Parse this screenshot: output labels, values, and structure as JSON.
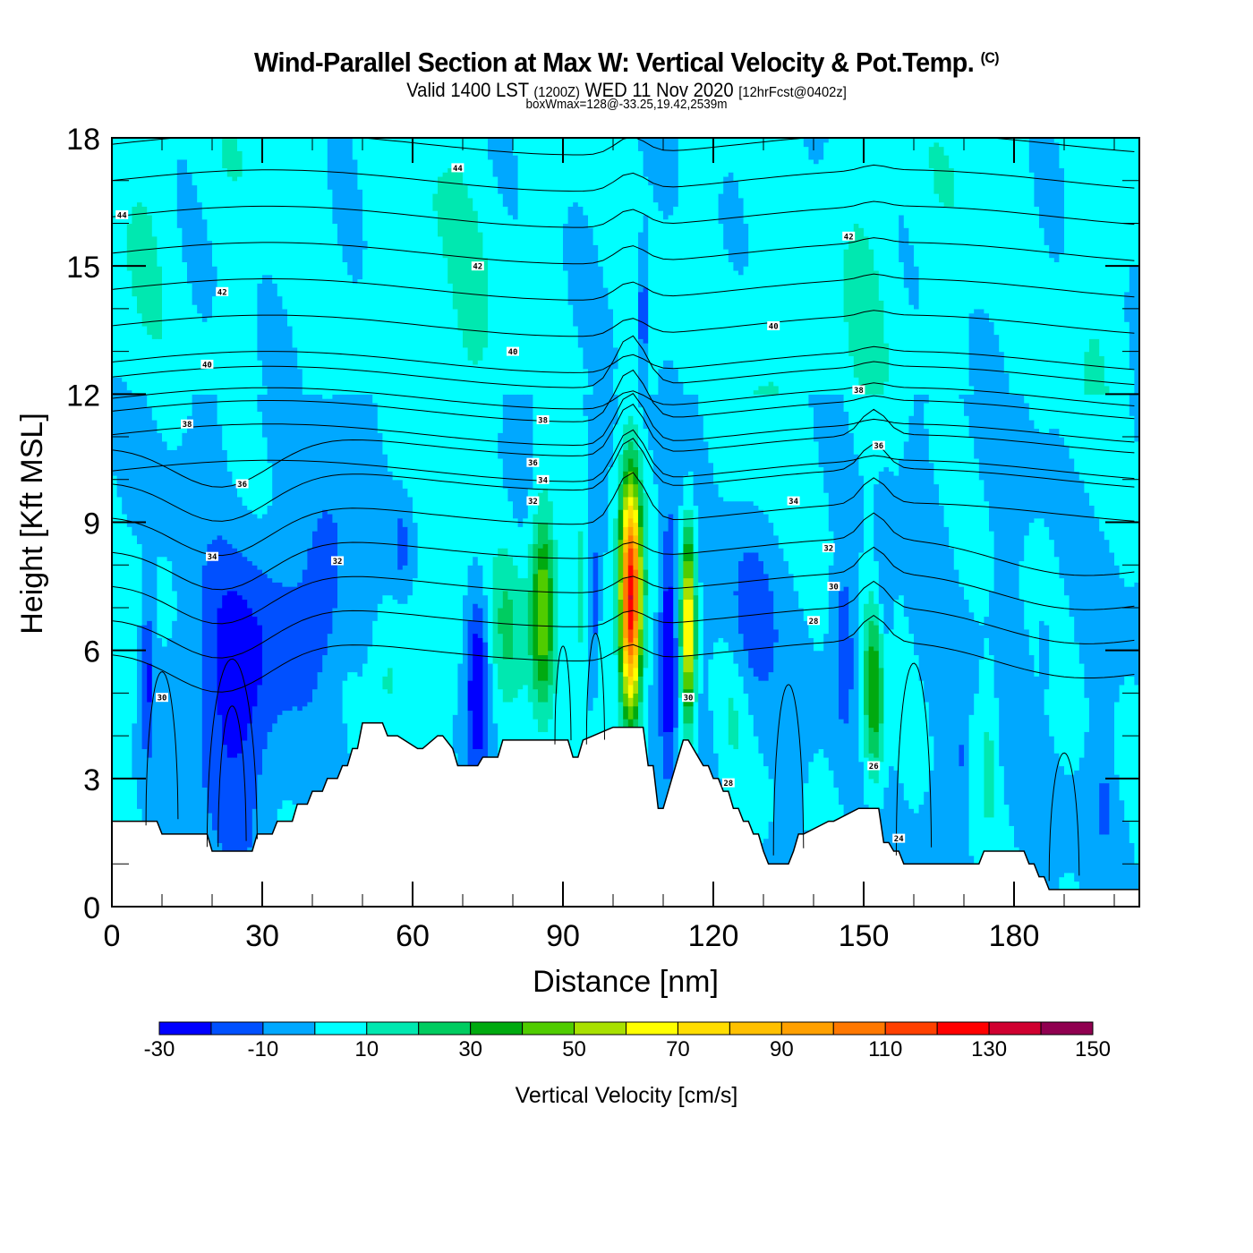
{
  "header": {
    "title": "Wind-Parallel Section at Max W: Vertical Velocity & Pot.Temp.",
    "copyright": "(C)",
    "valid_prefix": "Valid 1400 LST",
    "valid_utc": "(1200Z)",
    "valid_date": "WED 11 Nov 2020",
    "forecast": "[12hrFcst@0402z]",
    "box_info": "boxWmax=128@-33.25,19.42,2539m"
  },
  "chart_data": {
    "type": "heatmap",
    "title": "Wind-Parallel Section at Max W: Vertical Velocity & Pot.Temp.",
    "xlabel": "Distance [nm]",
    "ylabel": "Height [Kft MSL]",
    "xlim": [
      0,
      205
    ],
    "ylim": [
      0,
      18
    ],
    "x_ticks": [
      0,
      30,
      60,
      90,
      120,
      150,
      180
    ],
    "x_tick_labels": [
      "0",
      "30",
      "60",
      "90",
      "120",
      "150",
      "180"
    ],
    "x_minor_step": 10,
    "y_ticks": [
      0,
      3,
      6,
      9,
      12,
      15,
      18
    ],
    "y_tick_labels": [
      "0",
      "3",
      "6",
      "9",
      "12",
      "15",
      "18"
    ],
    "y_minor_step": 1,
    "colorbar": {
      "title": "Vertical Velocity [cm/s]",
      "levels": [
        -30,
        -20,
        -10,
        0,
        10,
        20,
        30,
        40,
        50,
        60,
        70,
        80,
        90,
        100,
        110,
        120,
        130,
        140,
        150
      ],
      "tick_labels": [
        "-30",
        "-10",
        "10",
        "30",
        "50",
        "70",
        "90",
        "110",
        "130",
        "150"
      ],
      "colors": [
        "#0000ff",
        "#0050ff",
        "#00a8ff",
        "#00ffff",
        "#00e8b0",
        "#00cc60",
        "#00aa10",
        "#50cc00",
        "#a8e000",
        "#ffff00",
        "#ffdd00",
        "#ffc000",
        "#ffa000",
        "#ff7800",
        "#ff4000",
        "#ff0000",
        "#d00030",
        "#900050"
      ]
    },
    "theta_contour_interval_K": 1,
    "theta_contour_labels": [
      {
        "value": "44",
        "x": 2,
        "z": 16.2
      },
      {
        "value": "44",
        "x": 69,
        "z": 17.3
      },
      {
        "value": "42",
        "x": 22,
        "z": 14.4
      },
      {
        "value": "42",
        "x": 73,
        "z": 15.0
      },
      {
        "value": "42",
        "x": 147,
        "z": 15.7
      },
      {
        "value": "40",
        "x": 19,
        "z": 12.7
      },
      {
        "value": "40",
        "x": 80,
        "z": 13.0
      },
      {
        "value": "40",
        "x": 132,
        "z": 13.6
      },
      {
        "value": "38",
        "x": 15,
        "z": 11.3
      },
      {
        "value": "38",
        "x": 86,
        "z": 11.4
      },
      {
        "value": "38",
        "x": 149,
        "z": 12.1
      },
      {
        "value": "36",
        "x": 26,
        "z": 9.9
      },
      {
        "value": "36",
        "x": 84,
        "z": 10.4
      },
      {
        "value": "36",
        "x": 153,
        "z": 10.8
      },
      {
        "value": "34",
        "x": 20,
        "z": 8.2
      },
      {
        "value": "34",
        "x": 86,
        "z": 10.0
      },
      {
        "value": "34",
        "x": 136,
        "z": 9.5
      },
      {
        "value": "32",
        "x": 45,
        "z": 8.1
      },
      {
        "value": "32",
        "x": 84,
        "z": 9.5
      },
      {
        "value": "32",
        "x": 143,
        "z": 8.4
      },
      {
        "value": "30",
        "x": 10,
        "z": 4.9
      },
      {
        "value": "30",
        "x": 115,
        "z": 4.9
      },
      {
        "value": "30",
        "x": 144,
        "z": 7.5
      },
      {
        "value": "28",
        "x": 140,
        "z": 6.7
      },
      {
        "value": "28",
        "x": 123,
        "z": 2.9
      },
      {
        "value": "26",
        "x": 152,
        "z": 3.3
      },
      {
        "value": "24",
        "x": 157,
        "z": 1.6
      }
    ],
    "max_w": {
      "value": 128,
      "units": "cm/s",
      "x": 103,
      "z": 7.5
    },
    "terrain_kft": {
      "x": [
        0,
        9,
        10,
        14,
        15,
        19,
        20,
        28,
        29,
        32,
        33,
        36,
        37,
        39,
        40,
        42,
        43,
        45,
        46,
        47,
        48,
        49,
        50,
        54,
        55,
        56,
        57,
        61,
        62,
        65,
        66,
        68,
        69,
        73,
        74,
        77,
        78,
        91,
        92,
        93,
        94,
        100,
        101,
        106,
        107,
        108,
        109,
        110,
        111,
        114,
        115,
        118,
        119,
        120,
        121,
        122,
        123,
        124,
        125,
        126,
        127,
        128,
        129,
        130,
        131,
        135,
        136,
        137,
        138,
        143,
        144,
        149,
        150,
        153,
        154,
        155,
        156,
        157,
        158,
        173,
        174,
        182,
        183,
        184,
        185,
        186,
        187,
        200,
        201,
        205
      ],
      "z": [
        2.0,
        2.0,
        1.7,
        1.7,
        1.7,
        1.7,
        1.3,
        1.3,
        1.7,
        1.7,
        2.0,
        2.0,
        2.4,
        2.4,
        2.7,
        2.7,
        3.0,
        3.0,
        3.3,
        3.3,
        3.7,
        3.7,
        4.3,
        4.3,
        4.0,
        4.0,
        4.0,
        3.7,
        3.7,
        4.0,
        4.0,
        3.7,
        3.3,
        3.3,
        3.5,
        3.5,
        3.9,
        3.9,
        3.5,
        3.5,
        3.9,
        4.2,
        4.2,
        4.2,
        3.3,
        3.3,
        2.3,
        2.3,
        2.7,
        3.9,
        3.9,
        3.3,
        3.3,
        3.0,
        3.0,
        2.7,
        2.7,
        2.3,
        2.3,
        2.0,
        2.0,
        1.7,
        1.7,
        1.3,
        1.0,
        1.0,
        1.3,
        1.7,
        1.7,
        2.0,
        2.0,
        2.3,
        2.3,
        2.3,
        1.5,
        1.5,
        1.3,
        1.3,
        1.0,
        1.0,
        1.3,
        1.3,
        1.0,
        1.0,
        0.7,
        0.7,
        0.4,
        0.4,
        0.4,
        0.4
      ]
    }
  }
}
